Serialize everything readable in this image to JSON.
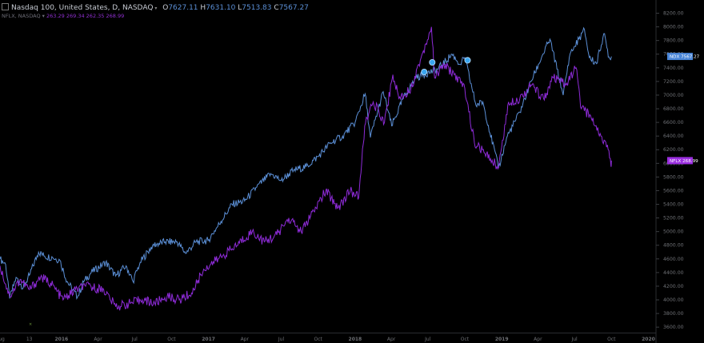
{
  "header": {
    "symbol": "Nasdaq 100, United States, D, NASDAQ",
    "ohlc": [
      {
        "label": "O",
        "value": "7627.11"
      },
      {
        "label": "H",
        "value": "7631.10"
      },
      {
        "label": "L",
        "value": "7513.83"
      },
      {
        "label": "C",
        "value": "7567.27"
      }
    ],
    "compare_symbol": "NFLX, NASDAQ",
    "compare_values": [
      "263.29",
      "269.34",
      "262.35",
      "268.99"
    ]
  },
  "colors": {
    "ndx": "#5b8fd6",
    "nflx": "#8e2bd8",
    "axis": "#6e7075",
    "bg": "#000000"
  },
  "chart_data": {
    "type": "line",
    "y_ticks": [
      3600,
      3800,
      4000,
      4200,
      4400,
      4600,
      4800,
      5000,
      5200,
      5400,
      5600,
      5800,
      6000,
      6200,
      6400,
      6600,
      6800,
      7000,
      7200,
      7400,
      7600,
      7800,
      8000,
      8200
    ],
    "ylim": [
      3520,
      8300
    ],
    "x_ticks": [
      "Aug",
      "13",
      "2016",
      "Apr",
      "Jul",
      "Oct",
      "2017",
      "Apr",
      "Jul",
      "Oct",
      "2018",
      "Apr",
      "Jul",
      "Oct",
      "2019",
      "Apr",
      "Jul",
      "Oct",
      "2020"
    ],
    "x_tick_dates": [
      "2015-08-01",
      "2015-10-13",
      "2016-01-01",
      "2016-04-01",
      "2016-07-01",
      "2016-10-01",
      "2017-01-01",
      "2017-04-01",
      "2017-07-01",
      "2017-10-01",
      "2018-01-01",
      "2018-04-01",
      "2018-07-01",
      "2018-10-01",
      "2019-01-01",
      "2019-04-01",
      "2019-07-01",
      "2019-10-01",
      "2020-01-01"
    ],
    "xlim": [
      "2015-08-01",
      "2020-01-20"
    ],
    "grid": false,
    "series": [
      {
        "name": "NDX",
        "last_label": "7567.27",
        "x": [
          "2015-08-01",
          "2015-08-15",
          "2015-08-25",
          "2015-09-10",
          "2015-09-28",
          "2015-10-13",
          "2015-11-05",
          "2015-11-20",
          "2015-12-10",
          "2015-12-28",
          "2016-01-15",
          "2016-02-10",
          "2016-02-25",
          "2016-03-15",
          "2016-04-20",
          "2016-05-15",
          "2016-06-10",
          "2016-06-27",
          "2016-07-15",
          "2016-08-15",
          "2016-09-15",
          "2016-10-15",
          "2016-11-05",
          "2016-12-01",
          "2016-12-31",
          "2017-02-01",
          "2017-03-01",
          "2017-04-01",
          "2017-05-01",
          "2017-06-05",
          "2017-07-01",
          "2017-08-01",
          "2017-09-01",
          "2017-10-01",
          "2017-11-01",
          "2017-12-01",
          "2018-01-01",
          "2018-01-26",
          "2018-02-08",
          "2018-03-12",
          "2018-04-02",
          "2018-05-01",
          "2018-06-01",
          "2018-06-20",
          "2018-07-25",
          "2018-08-15",
          "2018-08-30",
          "2018-09-20",
          "2018-10-01",
          "2018-10-29",
          "2018-11-15",
          "2018-12-24",
          "2019-01-15",
          "2019-02-15",
          "2019-03-15",
          "2019-04-10",
          "2019-05-01",
          "2019-06-03",
          "2019-06-20",
          "2019-07-26",
          "2019-08-07",
          "2019-08-25",
          "2019-09-12",
          "2019-09-25",
          "2019-10-01"
        ],
        "y": [
          4600,
          4520,
          4020,
          4330,
          4180,
          4360,
          4700,
          4640,
          4620,
          4580,
          4270,
          4040,
          4260,
          4400,
          4550,
          4350,
          4500,
          4270,
          4550,
          4800,
          4850,
          4850,
          4680,
          4850,
          4870,
          5150,
          5400,
          5450,
          5650,
          5850,
          5750,
          5900,
          5950,
          6100,
          6300,
          6400,
          6600,
          7020,
          6380,
          7050,
          6550,
          6950,
          7250,
          7300,
          7380,
          7500,
          7600,
          7450,
          7550,
          6850,
          6900,
          5930,
          6400,
          6750,
          7200,
          7550,
          7820,
          7000,
          7600,
          7960,
          7550,
          7460,
          7900,
          7560,
          7567
        ]
      },
      {
        "name": "NFLX",
        "last_label": "268.99",
        "x": [
          "2015-08-01",
          "2015-08-25",
          "2015-09-20",
          "2015-10-13",
          "2015-11-10",
          "2015-12-05",
          "2016-01-05",
          "2016-02-05",
          "2016-03-01",
          "2016-04-15",
          "2016-05-15",
          "2016-06-20",
          "2016-07-20",
          "2016-08-20",
          "2016-09-20",
          "2016-10-20",
          "2016-11-20",
          "2016-12-20",
          "2017-01-25",
          "2017-03-01",
          "2017-04-20",
          "2017-05-20",
          "2017-06-20",
          "2017-07-20",
          "2017-08-20",
          "2017-09-20",
          "2017-10-20",
          "2017-11-20",
          "2017-12-20",
          "2018-01-10",
          "2018-01-25",
          "2018-02-15",
          "2018-03-15",
          "2018-04-05",
          "2018-04-20",
          "2018-05-20",
          "2018-06-20",
          "2018-07-10",
          "2018-07-18",
          "2018-08-10",
          "2018-09-05",
          "2018-10-01",
          "2018-10-25",
          "2018-11-20",
          "2018-12-24",
          "2019-01-18",
          "2019-02-15",
          "2019-03-15",
          "2019-04-15",
          "2019-05-10",
          "2019-06-10",
          "2019-07-05",
          "2019-07-18",
          "2019-08-10",
          "2019-09-05",
          "2019-09-23",
          "2019-09-30",
          "2019-10-01"
        ],
        "y": [
          4500,
          4050,
          4300,
          4150,
          4330,
          4250,
          4000,
          4150,
          4200,
          4150,
          3900,
          3950,
          4000,
          3950,
          4050,
          4000,
          4100,
          4450,
          4600,
          4750,
          5000,
          4850,
          4950,
          5200,
          5000,
          5300,
          5600,
          5350,
          5600,
          5500,
          6550,
          6900,
          6600,
          7300,
          6950,
          7100,
          7650,
          8000,
          7250,
          7450,
          7300,
          7100,
          6300,
          6150,
          5950,
          6900,
          6950,
          7150,
          6950,
          7250,
          7150,
          7400,
          6800,
          6700,
          6400,
          6200,
          5950,
          6040
        ]
      }
    ],
    "markers": [
      {
        "x": "2018-06-22",
        "y": 7340
      },
      {
        "x": "2018-07-12",
        "y": 7480
      },
      {
        "x": "2018-10-08",
        "y": 7510
      }
    ]
  }
}
